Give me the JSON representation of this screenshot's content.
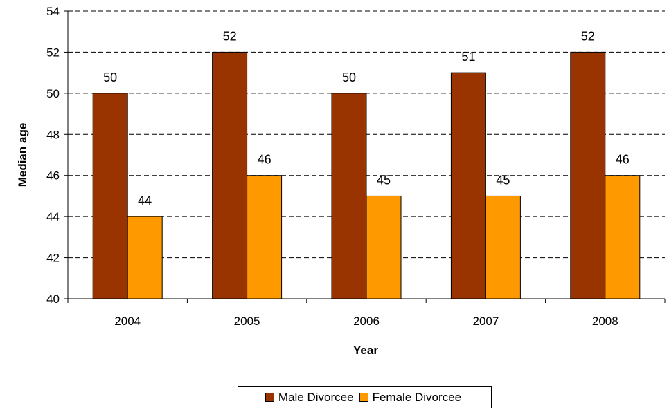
{
  "chart_data": {
    "type": "bar",
    "categories": [
      "2004",
      "2005",
      "2006",
      "2007",
      "2008"
    ],
    "series": [
      {
        "name": "Male Divorcee",
        "values": [
          50,
          52,
          50,
          51,
          52
        ],
        "color": "#993300"
      },
      {
        "name": "Female Divorcee",
        "values": [
          44,
          46,
          45,
          45,
          46
        ],
        "color": "#FF9900"
      }
    ],
    "title": "",
    "xlabel": "Year",
    "ylabel": "Median age",
    "ylim": [
      40,
      54
    ],
    "yticks": [
      40,
      42,
      44,
      46,
      48,
      50,
      52,
      54
    ],
    "grid": "horizontal-dashed",
    "legend_position": "bottom"
  }
}
